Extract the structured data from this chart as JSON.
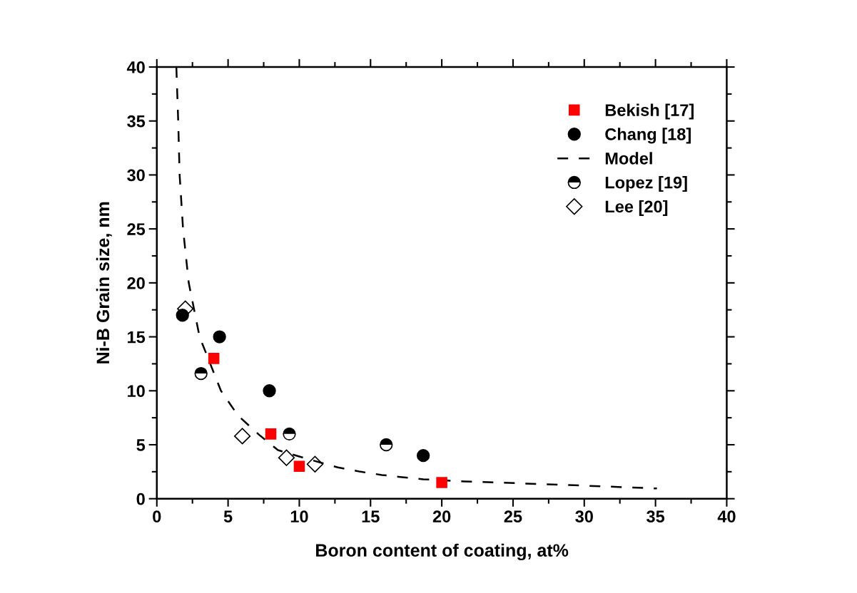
{
  "chart_data": {
    "type": "scatter",
    "xlabel": "Boron content of coating, at%",
    "ylabel": "Ni-B Grain size, nm",
    "xlim": [
      0,
      40
    ],
    "ylim": [
      0,
      40
    ],
    "xticks": [
      0,
      5,
      10,
      15,
      20,
      25,
      30,
      35,
      40
    ],
    "yticks": [
      0,
      5,
      10,
      15,
      20,
      25,
      30,
      35,
      40
    ],
    "grid": false,
    "legend": "top right",
    "series": [
      {
        "name": "Bekish [17]",
        "color": "#ff0000",
        "marker": "square",
        "x": [
          4,
          8,
          10,
          20
        ],
        "values": [
          13,
          6,
          3,
          1.5
        ]
      },
      {
        "name": "Chang [18]",
        "color": "#000000",
        "marker": "circle",
        "x": [
          1.8,
          4.4,
          7.9,
          18.7
        ],
        "values": [
          17,
          15,
          10,
          4
        ]
      },
      {
        "name": "Model",
        "type": "line",
        "color": "#000000",
        "line_style": "dashed",
        "marker": "none",
        "x": [
          1.37,
          1.5,
          1.6,
          1.84,
          2.24,
          3.0,
          4.5,
          5.7,
          7.2,
          8.5,
          10.4,
          12.7,
          14.3,
          15.8,
          17.2,
          18.7,
          20.2,
          21.6,
          28.3,
          35.1
        ],
        "values": [
          40,
          35,
          30,
          25,
          20,
          15,
          10,
          7.7,
          5.9,
          4.5,
          3.75,
          2.9,
          2.5,
          2.2,
          2.0,
          1.8,
          1.7,
          1.6,
          1.3,
          0.95
        ]
      },
      {
        "name": "Lopez [19]",
        "color": "#000000",
        "marker": "circle",
        "x": [
          3.1,
          9.3,
          16.1
        ],
        "values": [
          11.6,
          6,
          5
        ]
      },
      {
        "name": "Lee [20]",
        "color": "#000000",
        "marker": "diamond",
        "x": [
          2.0,
          6.0,
          9.1,
          11.1
        ],
        "values": [
          17.6,
          5.8,
          3.8,
          3.2
        ]
      }
    ]
  }
}
